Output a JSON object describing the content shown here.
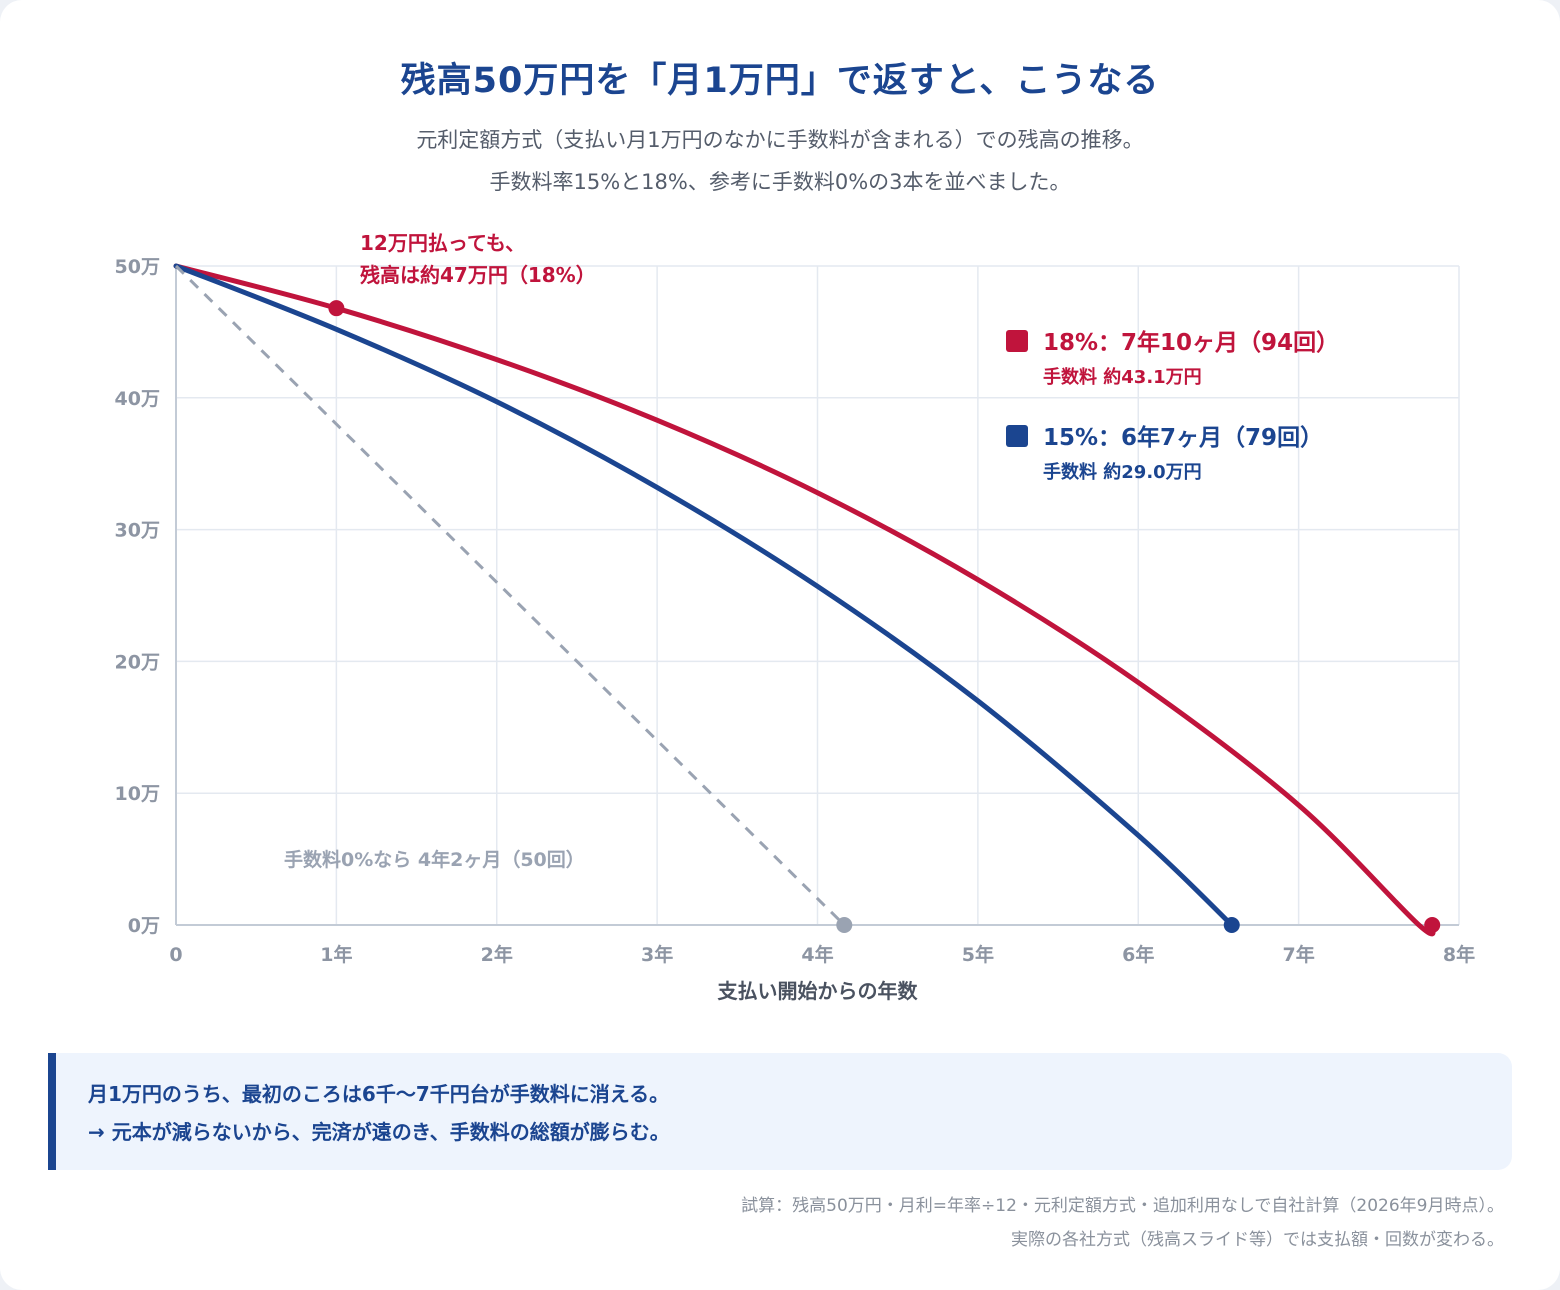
{
  "header": {
    "title": "残高50万円を「月1万円」で返すと、こうなる",
    "subtitle_line1": "元利定額方式（支払い月1万円のなかに手数料が含まれる）での残高の推移。",
    "subtitle_line2": "手数料率15%と18%、参考に手数料0%の3本を並べました。"
  },
  "chart_data": {
    "type": "line",
    "xlabel": "支払い開始からの年数",
    "ylabel": "",
    "xlim": [
      0,
      8
    ],
    "ylim": [
      0,
      50
    ],
    "grid": true,
    "x_ticks": [
      0,
      1,
      2,
      3,
      4,
      5,
      6,
      7,
      8
    ],
    "x_tick_labels": [
      "0",
      "1年",
      "2年",
      "3年",
      "4年",
      "5年",
      "6年",
      "7年",
      "8年"
    ],
    "y_ticks": [
      0,
      10,
      20,
      30,
      40,
      50
    ],
    "y_tick_labels": [
      "0万",
      "10万",
      "20万",
      "30万",
      "40万",
      "50万"
    ],
    "legend_position": "top-right",
    "series": [
      {
        "key": "r18",
        "color": "#c0143c",
        "style": "solid",
        "x": [
          0,
          1,
          2,
          3,
          4,
          5,
          6,
          7,
          7.75,
          7.833
        ],
        "y": [
          50,
          46.8,
          42.9,
          38.3,
          32.8,
          26.2,
          18.4,
          9.1,
          0,
          0
        ]
      },
      {
        "key": "r15",
        "color": "#1b4590",
        "style": "solid",
        "x": [
          0,
          1,
          2,
          3,
          4,
          5,
          6,
          6.583
        ],
        "y": [
          50,
          45.2,
          39.7,
          33.2,
          25.7,
          17.0,
          6.8,
          0
        ]
      },
      {
        "key": "r0",
        "color": "#9aa3b2",
        "style": "dashed",
        "x": [
          0,
          4.167
        ],
        "y": [
          50,
          0
        ]
      }
    ],
    "markers": [
      {
        "x": 1,
        "y": 46.8,
        "color": "#c0143c"
      },
      {
        "x": 7.833,
        "y": 0,
        "color": "#c0143c"
      },
      {
        "x": 6.583,
        "y": 0,
        "color": "#1b4590"
      },
      {
        "x": 4.167,
        "y": 0,
        "color": "#9aa3b2"
      }
    ],
    "legend": [
      {
        "color": "#c0143c",
        "label": "18%：7年10ヶ月（94回）",
        "sub": "手数料 約43.1万円"
      },
      {
        "color": "#1b4590",
        "label": "15%：6年7ヶ月（79回）",
        "sub": "手数料 約29.0万円"
      }
    ],
    "annotations": {
      "callout_line1": "12万円払っても、",
      "callout_line2": "残高は約47万円（18%）",
      "zero_label": "手数料0%なら 4年2ヶ月（50回）"
    }
  },
  "note": {
    "line1": "月1万円のうち、最初のころは6千〜7千円台が手数料に消える。",
    "line2": "→ 元本が減らないから、完済が遠のき、手数料の総額が膨らむ。"
  },
  "footnote": {
    "line1": "試算：残高50万円・月利=年率÷12・元利定額方式・追加利用なしで自社計算（2026年9月時点）。",
    "line2": "実際の各社方式（残高スライド等）では支払額・回数が変わる。"
  }
}
